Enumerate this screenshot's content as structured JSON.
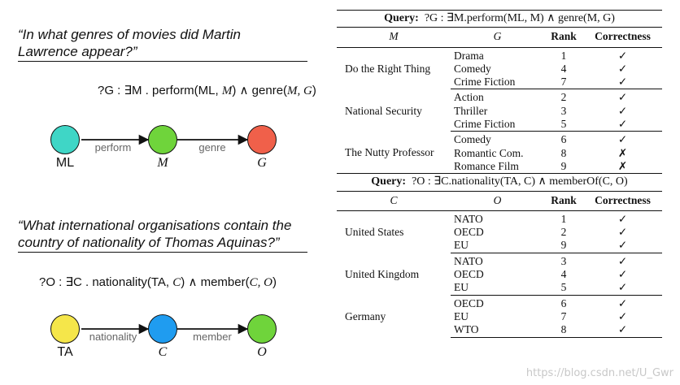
{
  "left": {
    "q1_line1": "“In what genres of movies did Martin",
    "q1_line2": "Lawrence appear?”",
    "f1_prefix": "?G : ∃M . ",
    "f1_rel1": "perform(ML,",
    "f1_var1": "M",
    "f1_mid": ") ∧ genre(",
    "f1_var2": "M, G",
    "f1_end": ")",
    "g1": {
      "n1": "ML",
      "n2": "M",
      "n3": "G",
      "e1": "perform",
      "e2": "genre",
      "c1": "#3fd6c6",
      "c2": "#6fd43b",
      "c3": "#f0604a"
    },
    "q2_line1": "“What international organisations contain the",
    "q2_line2": "country of nationality of Thomas Aquinas?”",
    "f2_prefix": "?O : ∃C . ",
    "f2_rel1": "nationality(TA,",
    "f2_var1": "C",
    "f2_mid": ") ∧ member(",
    "f2_var2": "C, O",
    "f2_end": ")",
    "g2": {
      "n1": "TA",
      "n2": "C",
      "n3": "O",
      "e1": "nationality",
      "e2": "member",
      "c1": "#f5e64a",
      "c2": "#1f9cf0",
      "c3": "#6fd43b"
    }
  },
  "table1": {
    "query_label": "Query:",
    "query_text": "?G : ∃M.perform(ML, M) ∧ genre(M, G)",
    "headers": [
      "M",
      "G",
      "Rank",
      "Correctness"
    ],
    "groups": [
      {
        "entity": "Do the Right Thing",
        "rows": [
          [
            "Drama",
            "1",
            "✓"
          ],
          [
            "Comedy",
            "4",
            "✓"
          ],
          [
            "Crime Fiction",
            "7",
            "✓"
          ]
        ]
      },
      {
        "entity": "National Security",
        "rows": [
          [
            "Action",
            "2",
            "✓"
          ],
          [
            "Thriller",
            "3",
            "✓"
          ],
          [
            "Crime Fiction",
            "5",
            "✓"
          ]
        ]
      },
      {
        "entity": "The Nutty Professor",
        "rows": [
          [
            "Comedy",
            "6",
            "✓"
          ],
          [
            "Romantic Com.",
            "8",
            "✗"
          ],
          [
            "Romance Film",
            "9",
            "✗"
          ]
        ]
      }
    ]
  },
  "table2": {
    "query_label": "Query:",
    "query_text": "?O : ∃C.nationality(TA, C) ∧ memberOf(C, O)",
    "headers": [
      "C",
      "O",
      "Rank",
      "Correctness"
    ],
    "groups": [
      {
        "entity": "United States",
        "rows": [
          [
            "NATO",
            "1",
            "✓"
          ],
          [
            "OECD",
            "2",
            "✓"
          ],
          [
            "EU",
            "9",
            "✓"
          ]
        ]
      },
      {
        "entity": "United Kingdom",
        "rows": [
          [
            "NATO",
            "3",
            "✓"
          ],
          [
            "OECD",
            "4",
            "✓"
          ],
          [
            "EU",
            "5",
            "✓"
          ]
        ]
      },
      {
        "entity": "Germany",
        "rows": [
          [
            "OECD",
            "6",
            "✓"
          ],
          [
            "EU",
            "7",
            "✓"
          ],
          [
            "WTO",
            "8",
            "✓"
          ]
        ]
      }
    ]
  },
  "watermark": "https://blog.csdn.net/U_Gwr"
}
